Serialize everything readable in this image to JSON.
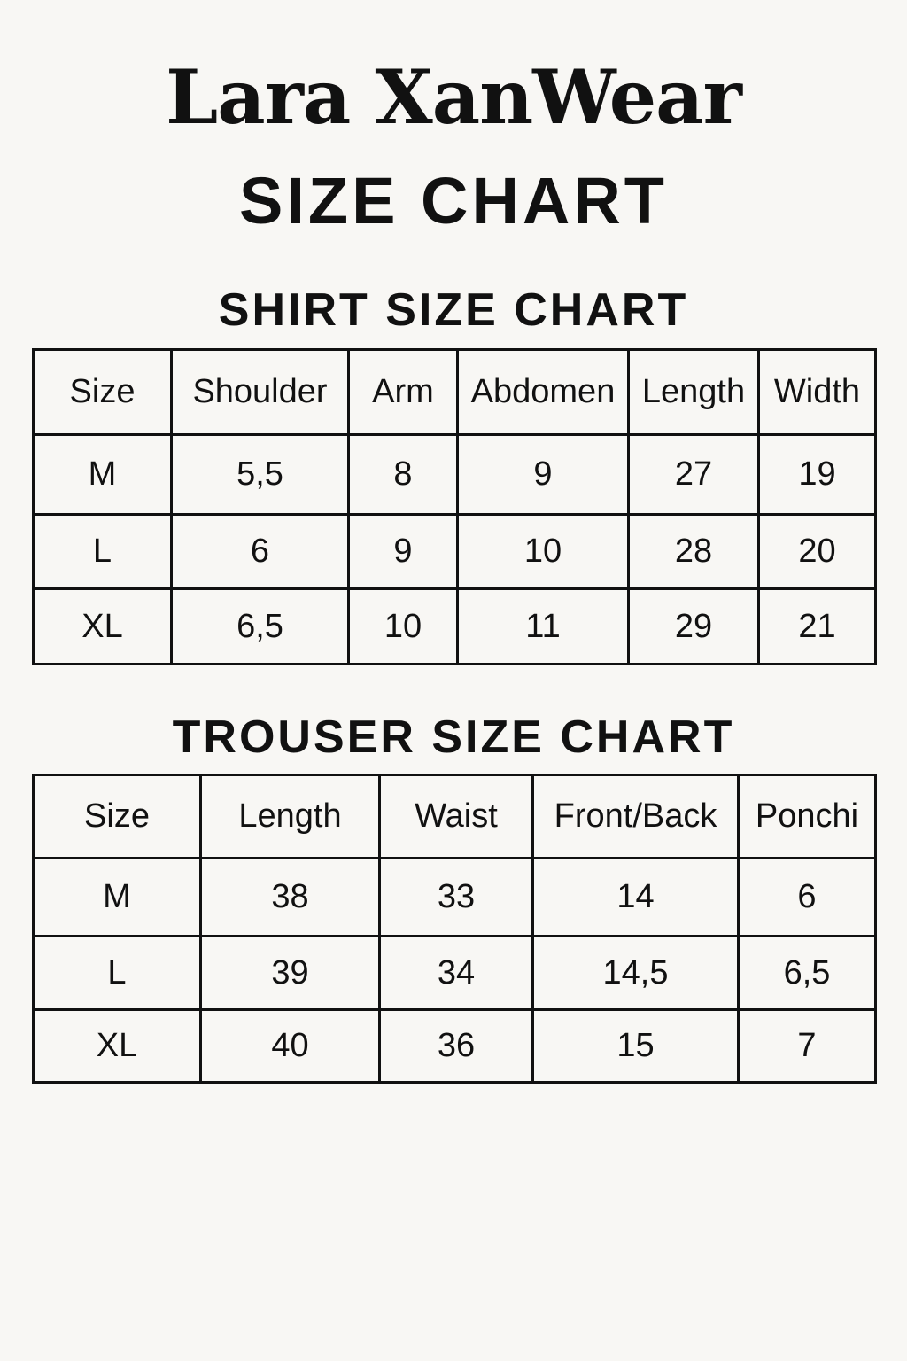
{
  "brand": "Lara XanWear",
  "subtitle": "SIZE CHART",
  "shirt": {
    "title": "SHIRT SIZE CHART",
    "headers": [
      "Size",
      "Shoulder",
      "Arm",
      "Abdomen",
      "Length",
      "Width"
    ],
    "rows": [
      [
        "M",
        "5,5",
        "8",
        "9",
        "27",
        "19"
      ],
      [
        "L",
        "6",
        "9",
        "10",
        "28",
        "20"
      ],
      [
        "XL",
        "6,5",
        "10",
        "11",
        "29",
        "21"
      ]
    ]
  },
  "trouser": {
    "title": "TROUSER SIZE CHART",
    "headers": [
      "Size",
      "Length",
      "Waist",
      "Front/Back",
      "Ponchi"
    ],
    "rows": [
      [
        "M",
        "38",
        "33",
        "14",
        "6"
      ],
      [
        "L",
        "39",
        "34",
        "14,5",
        "6,5"
      ],
      [
        "XL",
        "40",
        "36",
        "15",
        "7"
      ]
    ]
  }
}
